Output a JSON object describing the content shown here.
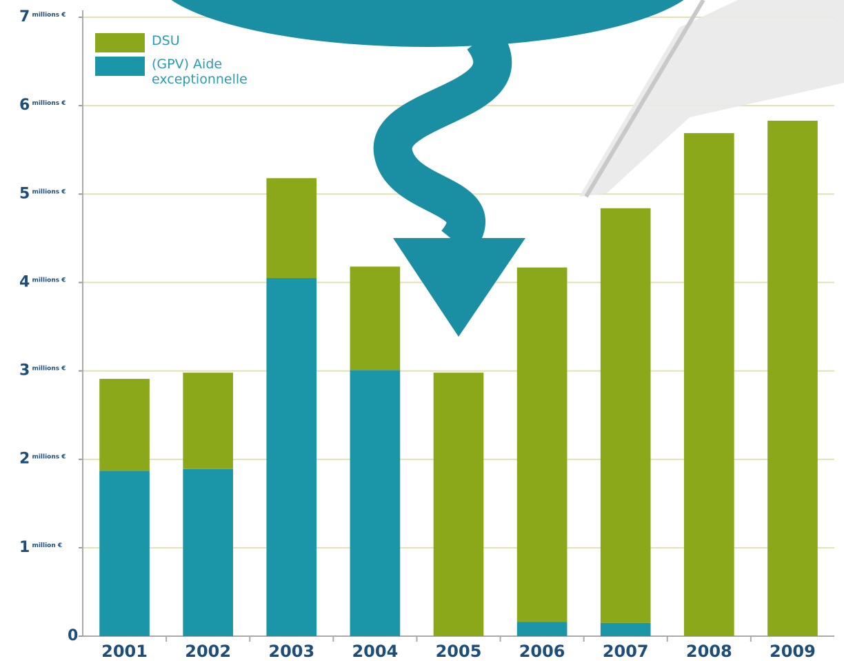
{
  "chart_data": {
    "type": "stacked_bar",
    "categories": [
      "2001",
      "2002",
      "2003",
      "2004",
      "2005",
      "2006",
      "2007",
      "2008",
      "2009"
    ],
    "series": [
      {
        "name": "(GPV) Aide exceptionnelle",
        "color": "#1b96a8",
        "values": [
          1.87,
          1.89,
          4.05,
          3.01,
          0,
          0.16,
          0.15,
          0,
          0
        ]
      },
      {
        "name": "DSU",
        "color": "#8aa81a",
        "values": [
          1.04,
          1.09,
          1.13,
          1.17,
          2.98,
          4.01,
          4.69,
          5.69,
          5.83
        ]
      }
    ],
    "ylim": [
      0,
      7
    ],
    "yticks": [
      0,
      {
        "value": 1,
        "label": "1 million €"
      },
      {
        "value": 2,
        "label": "2 millions €"
      },
      {
        "value": 3,
        "label": "3 millions €"
      },
      {
        "value": 4,
        "label": "4 millions €"
      },
      {
        "value": 5,
        "label": "5 millions €"
      },
      {
        "value": 6,
        "label": "6 millions €"
      },
      {
        "value": 7,
        "label": "7 millions €"
      }
    ],
    "grid": true
  }
}
